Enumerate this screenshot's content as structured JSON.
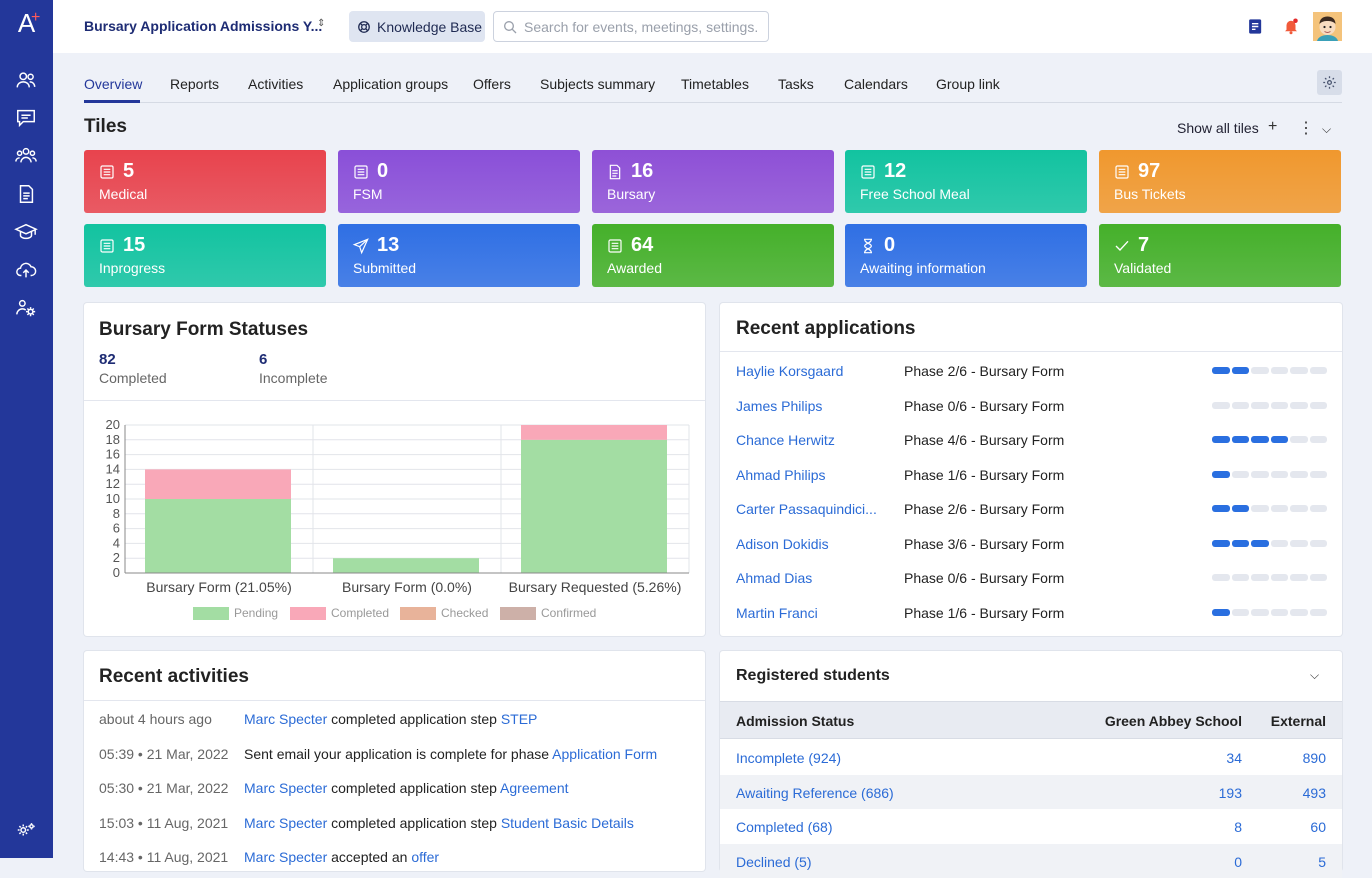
{
  "header": {
    "app_title": "Bursary Application Admissions Y...",
    "knowledge_base": "Knowledge Base",
    "search_placeholder": "Search for events, meetings, settings..."
  },
  "logo": {
    "letter": "A",
    "plus": "+"
  },
  "tabs": [
    "Overview",
    "Reports",
    "Activities",
    "Application groups",
    "Offers",
    "Subjects summary",
    "Timetables",
    "Tasks",
    "Calendars",
    "Group link"
  ],
  "tiles_section": {
    "title": "Tiles",
    "show_all": "Show all tiles"
  },
  "tiles": [
    {
      "value": "5",
      "label": "Medical",
      "icon": "list-icon",
      "color": "#e8434d"
    },
    {
      "value": "0",
      "label": "FSM",
      "icon": "list-icon",
      "color": "#8a4fd8"
    },
    {
      "value": "16",
      "label": "Bursary",
      "icon": "document-icon",
      "color": "#8e50d6"
    },
    {
      "value": "12",
      "label": "Free School Meal",
      "icon": "list-icon",
      "color": "#12c3a0"
    },
    {
      "value": "97",
      "label": "Bus Tickets",
      "icon": "list-icon",
      "color": "#f0982e"
    },
    {
      "value": "15",
      "label": "Inprogress",
      "icon": "list-icon",
      "color": "#12c3a0"
    },
    {
      "value": "13",
      "label": "Submitted",
      "icon": "send-icon",
      "color": "#2f6fe4"
    },
    {
      "value": "64",
      "label": "Awarded",
      "icon": "list-icon",
      "color": "#45b02a"
    },
    {
      "value": "0",
      "label": "Awaiting information",
      "icon": "hourglass-icon",
      "color": "#2f6fe4"
    },
    {
      "value": "7",
      "label": "Validated",
      "icon": "check-icon",
      "color": "#45b02a"
    }
  ],
  "bursary_card": {
    "title": "Bursary Form Statuses",
    "completed_value": "82",
    "completed_label": "Completed",
    "incomplete_value": "6",
    "incomplete_label": "Incomplete"
  },
  "chart_data": {
    "type": "bar",
    "stacked": true,
    "categories": [
      "Bursary Form (21.05%)",
      "Bursary Form (0.0%)",
      "Bursary Requested (5.26%)"
    ],
    "series": [
      {
        "name": "Pending",
        "color": "#a3dda3",
        "values": [
          10,
          2,
          18
        ]
      },
      {
        "name": "Completed",
        "color": "#f9a8b8",
        "values": [
          4,
          0,
          2
        ]
      },
      {
        "name": "Checked",
        "color": "#e8b39a",
        "values": [
          0,
          0,
          0
        ]
      },
      {
        "name": "Confirmed",
        "color": "#cdb0a8",
        "values": [
          0,
          0,
          0
        ]
      }
    ],
    "yticks": [
      "0",
      "2",
      "4",
      "6",
      "8",
      "10",
      "12",
      "14",
      "16",
      "18",
      "20"
    ],
    "ylim": [
      0,
      20
    ],
    "grid": true,
    "legend_position": "bottom"
  },
  "recent_applications": {
    "title": "Recent applications",
    "rows": [
      {
        "name": "Haylie Korsgaard",
        "phase": "Phase 2/6 - Bursary Form",
        "progress": 2
      },
      {
        "name": "James Philips",
        "phase": "Phase 0/6 - Bursary Form",
        "progress": 0
      },
      {
        "name": "Chance Herwitz",
        "phase": "Phase 4/6 - Bursary Form",
        "progress": 4
      },
      {
        "name": "Ahmad Philips",
        "phase": "Phase 1/6 - Bursary Form",
        "progress": 1
      },
      {
        "name": "Carter Passaquindici...",
        "phase": "Phase 2/6 - Bursary Form",
        "progress": 2
      },
      {
        "name": "Adison Dokidis",
        "phase": "Phase 3/6 - Bursary Form",
        "progress": 3
      },
      {
        "name": "Ahmad Dias",
        "phase": "Phase 0/6 - Bursary Form",
        "progress": 0
      },
      {
        "name": "Martin Franci",
        "phase": "Phase 1/6 - Bursary Form",
        "progress": 1
      }
    ]
  },
  "recent_activities": {
    "title": "Recent activities",
    "rows": [
      {
        "time": "about 4 hours ago",
        "actor": "Marc Specter",
        "text": " completed application step ",
        "target": "STEP"
      },
      {
        "time": "05:39 • 21 Mar, 2022",
        "actor": "",
        "text": "Sent email your application is complete for phase ",
        "target": "Application Form"
      },
      {
        "time": "05:30 • 21 Mar, 2022",
        "actor": "Marc Specter",
        "text": " completed application step ",
        "target": "Agreement"
      },
      {
        "time": "15:03 • 11 Aug, 2021",
        "actor": "Marc Specter",
        "text": " completed application step ",
        "target": "Student Basic Details"
      },
      {
        "time": "14:43 • 11 Aug, 2021",
        "actor": "Marc Specter",
        "text": " accepted an ",
        "target": "offer"
      }
    ]
  },
  "registered_students": {
    "title": "Registered students",
    "col_status": "Admission Status",
    "col_school": "Green Abbey School",
    "col_external": "External",
    "rows": [
      {
        "status": "Incomplete (924)",
        "school": "34",
        "external": "890"
      },
      {
        "status": "Awaiting Reference (686)",
        "school": "193",
        "external": "493"
      },
      {
        "status": "Completed (68)",
        "school": "8",
        "external": "60"
      },
      {
        "status": "Declined (5)",
        "school": "0",
        "external": "5"
      }
    ]
  }
}
